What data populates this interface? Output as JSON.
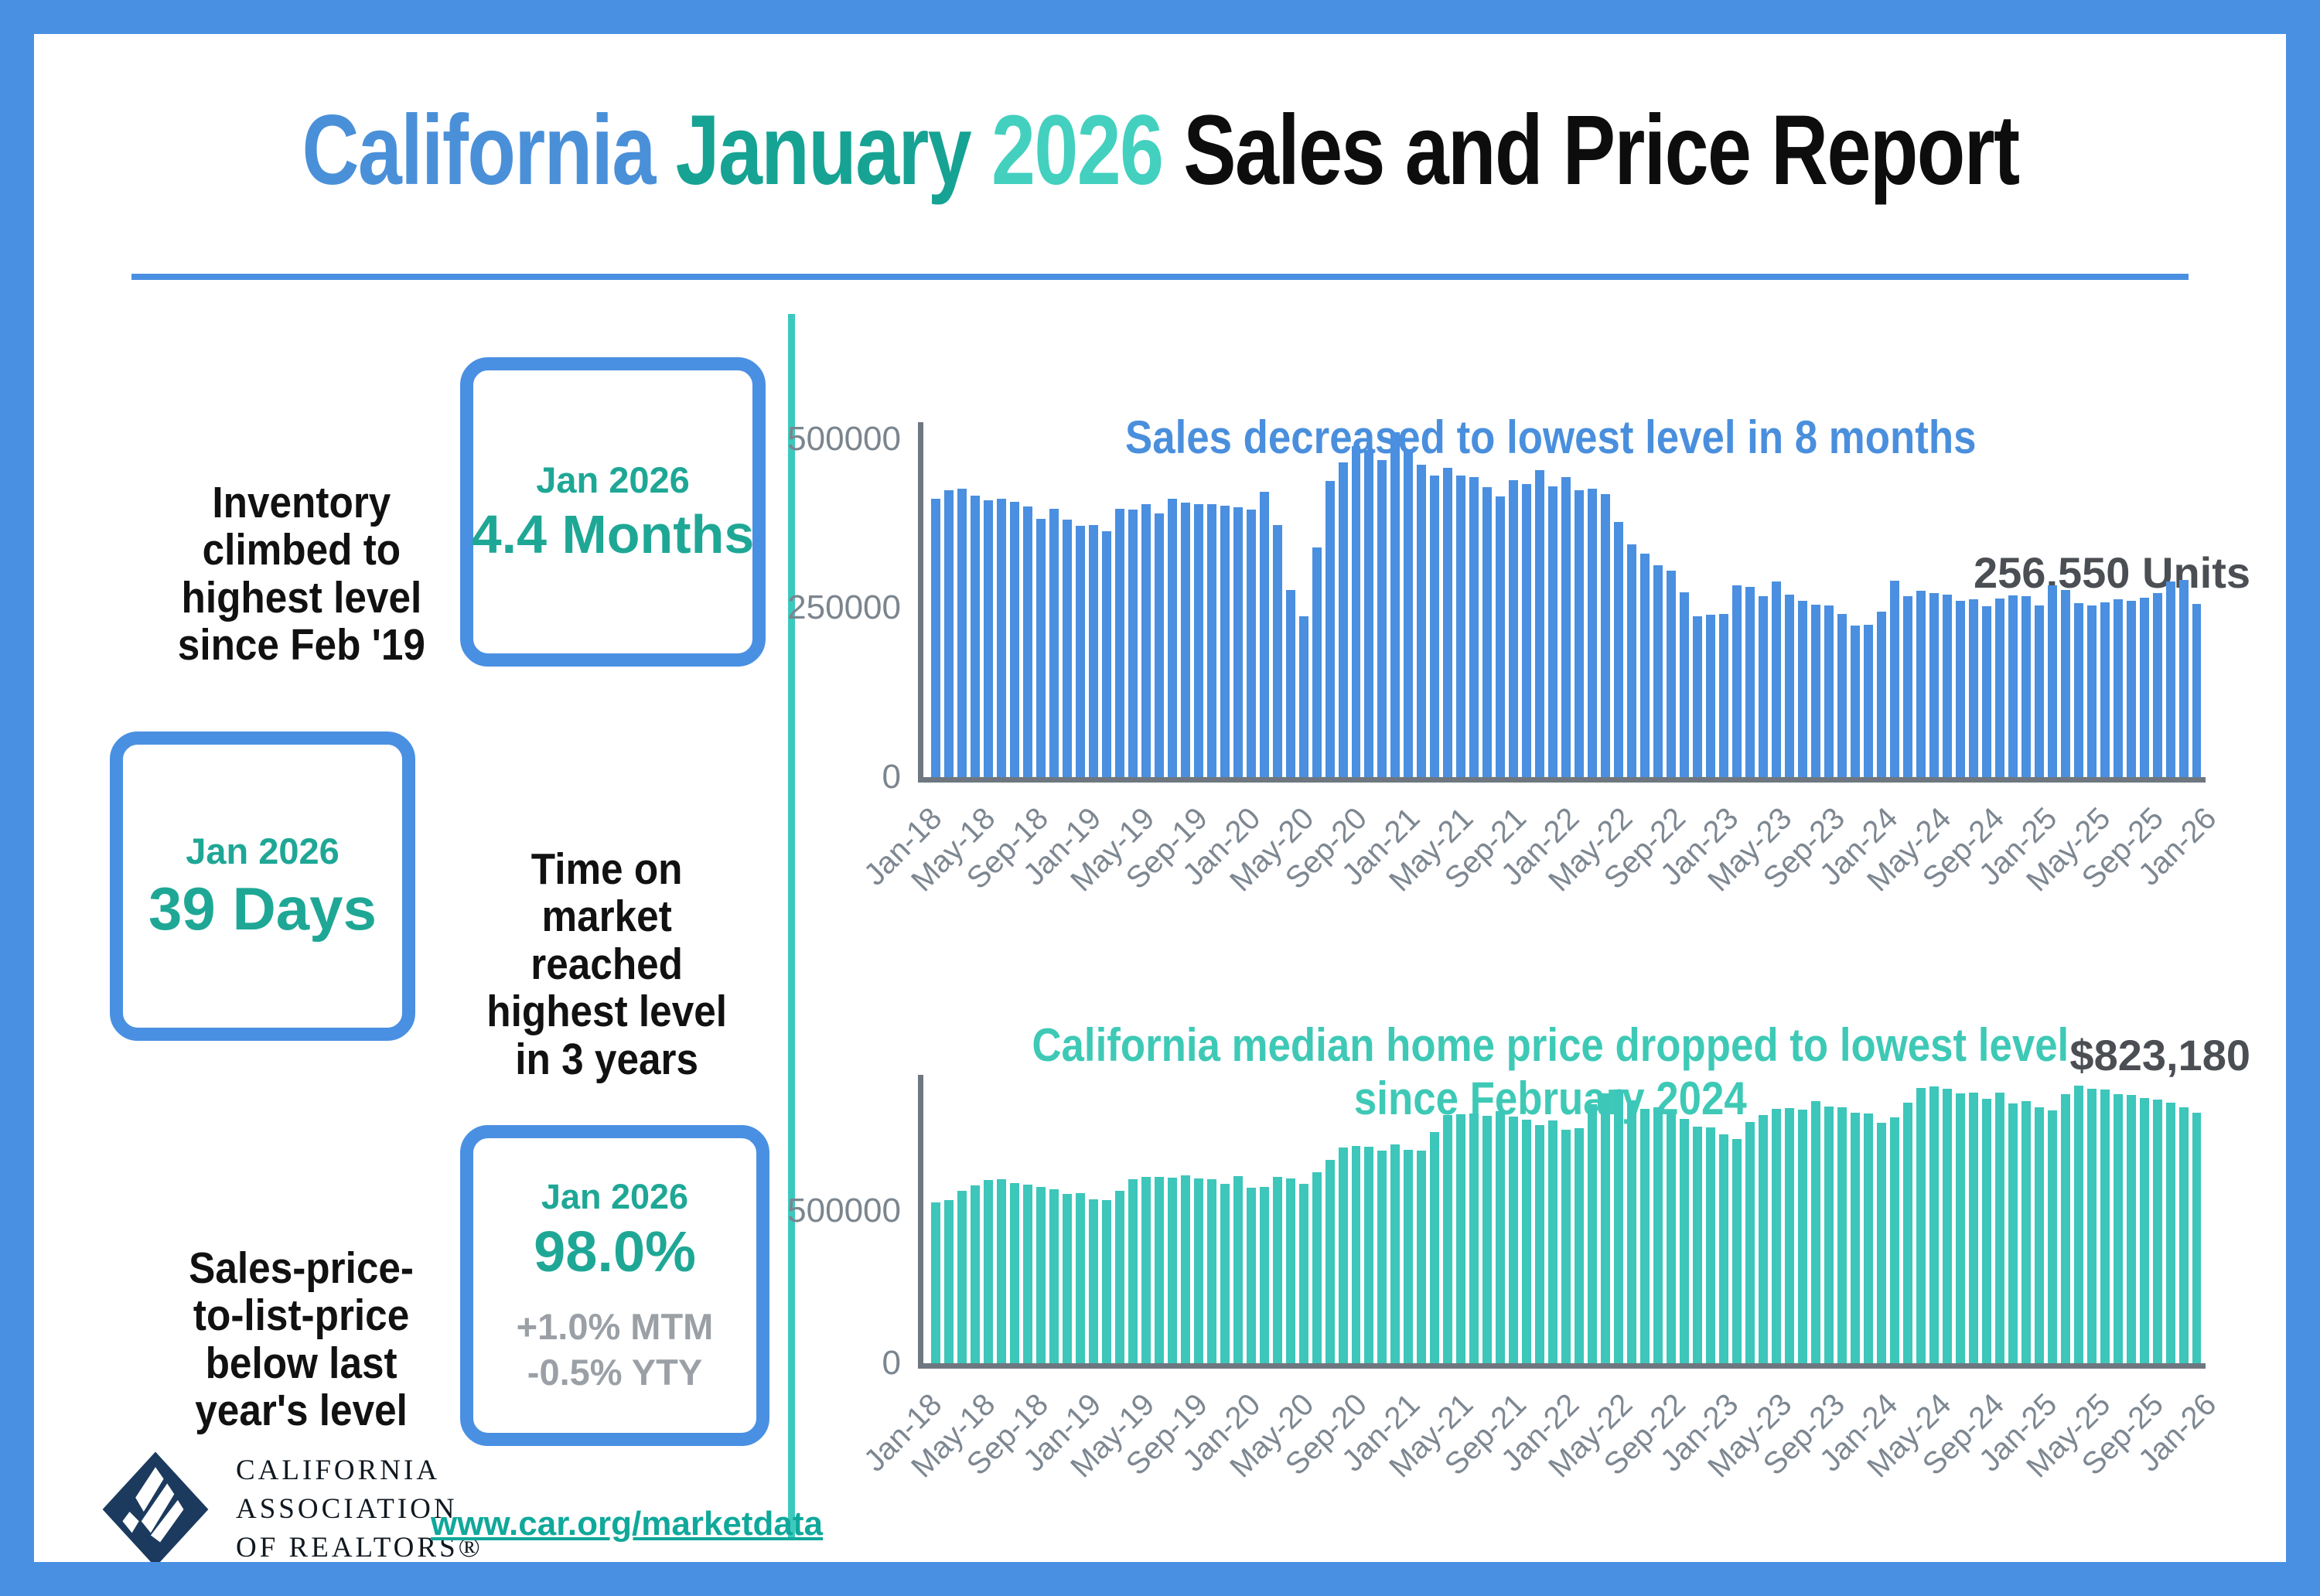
{
  "title": {
    "part1": "California ",
    "part2": "January ",
    "part3": "2026 ",
    "part4": "Sales and Price Report"
  },
  "stats": [
    {
      "label": "Inventory\nclimbed to\nhighest level\nsince Feb '19",
      "period": "Jan 2026",
      "value": "4.4 Months"
    },
    {
      "label": "Time on\nmarket\nreached\nhighest level\nin 3 years",
      "period": "Jan 2026",
      "value": "39 Days"
    },
    {
      "label": "Sales-price-\nto-list-price\nbelow last\nyear's level",
      "period": "Jan 2026",
      "value": "98.0%",
      "sub": "+1.0% MTM\n-0.5% YTY"
    }
  ],
  "footer": {
    "logo_text": "CALIFORNIA\nASSOCIATION\nOF REALTORS®",
    "url": "www.car.org/marketdata"
  },
  "colors": {
    "frame_blue": "#4a90e2",
    "bar_blue": "#4a8fe0",
    "bar_teal": "#3dc6ba",
    "divider_teal": "#3cc9bd",
    "stat_teal": "#1fa796",
    "annotation_gray": "#4b4f54"
  },
  "chart_data": [
    {
      "type": "bar",
      "title": "Sales decreased to lowest level in 8 months",
      "annotation": "256,550 Units",
      "xlabel": "",
      "ylabel": "",
      "ylim": [
        0,
        500000
      ],
      "ytick_labels": [
        "0",
        "250000",
        "500000"
      ],
      "grid": false,
      "legend": "none",
      "bar_color": "#4a8fe0",
      "tick_every": 4,
      "tick_labels": [
        "Jan-18",
        "May-18",
        "Sep-18",
        "Jan-19",
        "May-19",
        "Sep-19",
        "Jan-20",
        "May-20",
        "Sep-20",
        "Jan-21",
        "May-21",
        "Sep-21",
        "Jan-22",
        "May-22",
        "Sep-22",
        "Jan-23",
        "May-23",
        "Sep-23",
        "Jan-24",
        "May-24",
        "Sep-24",
        "Jan-25",
        "May-25",
        "Sep-25",
        "Jan-26"
      ],
      "values": [
        412000,
        424000,
        427000,
        417000,
        410000,
        412000,
        407000,
        400000,
        382000,
        397000,
        381000,
        372300,
        372700,
        364000,
        397200,
        396400,
        404000,
        389700,
        411600,
        406100,
        404000,
        404200,
        402000,
        398900,
        395700,
        421700,
        373100,
        277400,
        238100,
        339900,
        437900,
        465200,
        489600,
        484500,
        469000,
        509800,
        484700,
        462700,
        446400,
        458200,
        445800,
        444500,
        428900,
        414900,
        438800,
        434200,
        454400,
        429900,
        444500,
        424600,
        426900,
        419000,
        377200,
        344900,
        330100,
        313500,
        305700,
        274000,
        237700,
        240300,
        241500,
        284000,
        281100,
        267900,
        289500,
        270200,
        260500,
        254700,
        254000,
        241800,
        223900,
        224900,
        244400,
        290100,
        267600,
        275500,
        272400,
        270200,
        261000,
        262900,
        253000,
        264200,
        268500,
        268200,
        254100,
        283700,
        277400,
        258000,
        254200,
        259000,
        263000,
        261000,
        266000,
        272000,
        290000,
        292000,
        256550
      ]
    },
    {
      "type": "bar",
      "title": "California median home price dropped to lowest level\nsince February 2024",
      "annotation": "$823,180",
      "xlabel": "",
      "ylabel": "",
      "ylim": [
        0,
        500000
      ],
      "ytick_labels": [
        "0",
        "500000"
      ],
      "grid": false,
      "legend": "none",
      "bar_color": "#3dc6ba",
      "tick_every": 4,
      "tick_labels": [
        "Jan-18",
        "May-18",
        "Sep-18",
        "Jan-19",
        "May-19",
        "Sep-19",
        "Jan-20",
        "May-20",
        "Sep-20",
        "Jan-21",
        "May-21",
        "Sep-21",
        "Jan-22",
        "May-22",
        "Sep-22",
        "Jan-23",
        "May-23",
        "Sep-23",
        "Jan-24",
        "May-24",
        "Sep-24",
        "Jan-25",
        "May-25",
        "Sep-25",
        "Jan-26"
      ],
      "values": [
        527800,
        535500,
        564800,
        584500,
        600900,
        602800,
        591500,
        587000,
        578900,
        572000,
        554800,
        557600,
        538700,
        534900,
        565900,
        602900,
        611200,
        611400,
        607900,
        617400,
        605700,
        605300,
        589800,
        615100,
        575200,
        578700,
        612000,
        606400,
        588100,
        626200,
        666300,
        706900,
        712400,
        711300,
        699000,
        717900,
        699900,
        699000,
        758900,
        813900,
        818300,
        819600,
        811200,
        827900,
        808900,
        798400,
        782500,
        796600,
        765600,
        771300,
        849100,
        884900,
        899000,
        863800,
        833900,
        839500,
        821700,
        801200,
        777500,
        774600,
        751300,
        735500,
        791500,
        815300,
        836100,
        838300,
        832300,
        859800,
        843300,
        840400,
        822200,
        819700,
        788900,
        806900,
        854500,
        904200,
        908000,
        900700,
        886600,
        888700,
        868200,
        888500,
        852900,
        861000,
        838900,
        829100,
        884400,
        910100,
        900200,
        899600,
        884000,
        880000,
        870000,
        866000,
        855000,
        840000,
        823180
      ]
    }
  ]
}
